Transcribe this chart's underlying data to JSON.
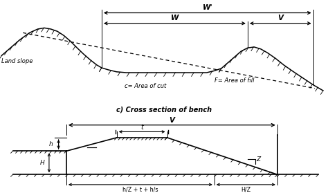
{
  "line_color": "#000000",
  "title_top": "c) Cross section of bench",
  "label_land_slope": "Land slope",
  "label_c": "c= Area of cut",
  "label_F": "F= Area of fill",
  "label_W_prime": "W'",
  "label_W": "W",
  "label_V_top": "V",
  "label_V_bot": "V",
  "label_t": "t",
  "label_h": "h",
  "label_H": "H",
  "label_Z": "Z",
  "label_bottom_left": "h/Z + t + h/s",
  "label_bottom_right": "H/Z"
}
